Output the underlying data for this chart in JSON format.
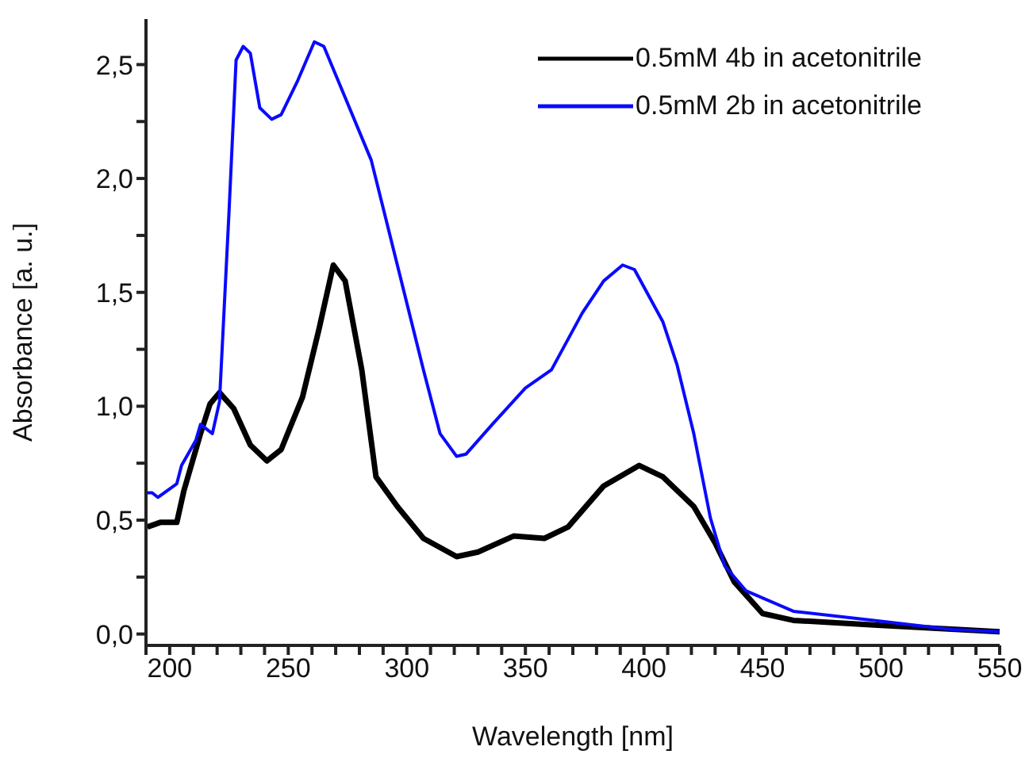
{
  "chart_data": {
    "type": "line",
    "xlabel": "Wavelength [nm]",
    "ylabel": "Absorbance [a. u.]",
    "xlim": [
      190,
      550
    ],
    "ylim": [
      -0.05,
      2.7
    ],
    "xticks": [
      {
        "value": 190,
        "label": null
      },
      200,
      {
        "value": 210,
        "label": null
      },
      {
        "value": 220,
        "label": null
      },
      {
        "value": 230,
        "label": null
      },
      {
        "value": 240,
        "label": null
      },
      250,
      {
        "value": 260,
        "label": null
      },
      {
        "value": 270,
        "label": null
      },
      {
        "value": 280,
        "label": null
      },
      {
        "value": 290,
        "label": null
      },
      300,
      {
        "value": 310,
        "label": null
      },
      {
        "value": 320,
        "label": null
      },
      {
        "value": 330,
        "label": null
      },
      {
        "value": 340,
        "label": null
      },
      350,
      {
        "value": 360,
        "label": null
      },
      {
        "value": 370,
        "label": null
      },
      {
        "value": 380,
        "label": null
      },
      {
        "value": 390,
        "label": null
      },
      400,
      {
        "value": 410,
        "label": null
      },
      {
        "value": 420,
        "label": null
      },
      {
        "value": 430,
        "label": null
      },
      {
        "value": 440,
        "label": null
      },
      450,
      {
        "value": 460,
        "label": null
      },
      {
        "value": 470,
        "label": null
      },
      {
        "value": 480,
        "label": null
      },
      {
        "value": 490,
        "label": null
      },
      500,
      {
        "value": 510,
        "label": null
      },
      {
        "value": 520,
        "label": null
      },
      {
        "value": 530,
        "label": null
      },
      {
        "value": 540,
        "label": null
      },
      550
    ],
    "yticks": [
      {
        "value": 0,
        "label": "0,0"
      },
      {
        "value": 0.25,
        "label": null
      },
      {
        "value": 0.5,
        "label": "0,5"
      },
      {
        "value": 0.75,
        "label": null
      },
      {
        "value": 1,
        "label": "1,0"
      },
      {
        "value": 1.25,
        "label": null
      },
      {
        "value": 1.5,
        "label": "1,5"
      },
      {
        "value": 1.75,
        "label": null
      },
      {
        "value": 2,
        "label": "2,0"
      },
      {
        "value": 2.25,
        "label": null
      },
      {
        "value": 2.5,
        "label": "2,5"
      }
    ],
    "grid": false,
    "legend": "top right",
    "marker": "none",
    "line_style": "solid",
    "series": [
      {
        "name": "0.5mM 4b in acetonitrile",
        "color": "#000000",
        "x": [
          190.6,
          196,
          203,
          206,
          213,
          217,
          221,
          227,
          234,
          241,
          247,
          256,
          263,
          269,
          274,
          281,
          287,
          296,
          307,
          321,
          330,
          345,
          358,
          368,
          383,
          398,
          408,
          421,
          430,
          438,
          450,
          463,
          497,
          550
        ],
        "values": [
          0.47,
          0.49,
          0.49,
          0.63,
          0.88,
          1.01,
          1.06,
          0.99,
          0.83,
          0.76,
          0.81,
          1.04,
          1.34,
          1.62,
          1.55,
          1.16,
          0.69,
          0.56,
          0.42,
          0.34,
          0.36,
          0.43,
          0.42,
          0.47,
          0.65,
          0.74,
          0.69,
          0.56,
          0.4,
          0.23,
          0.09,
          0.06,
          0.04,
          0.01
        ]
      },
      {
        "name": "0.5mM 2b in acetonitrile",
        "color": "#0a0aff",
        "x": [
          190.6,
          192.6,
          195,
          203,
          205,
          211,
          213,
          218,
          221,
          225,
          228,
          231,
          234,
          238,
          243,
          247,
          254,
          261,
          265,
          271,
          285,
          296,
          307,
          314,
          321,
          325,
          336,
          350,
          361,
          374,
          383,
          391,
          396,
          408,
          414,
          421,
          428,
          434,
          443,
          463,
          497,
          530,
          550
        ],
        "values": [
          0.62,
          0.62,
          0.6,
          0.66,
          0.74,
          0.85,
          0.92,
          0.88,
          1.02,
          1.85,
          2.52,
          2.58,
          2.55,
          2.31,
          2.26,
          2.28,
          2.43,
          2.6,
          2.58,
          2.43,
          2.08,
          1.62,
          1.16,
          0.88,
          0.78,
          0.79,
          0.92,
          1.08,
          1.16,
          1.41,
          1.55,
          1.62,
          1.6,
          1.37,
          1.18,
          0.88,
          0.51,
          0.3,
          0.19,
          0.1,
          0.06,
          0.02,
          0.01
        ]
      }
    ]
  }
}
